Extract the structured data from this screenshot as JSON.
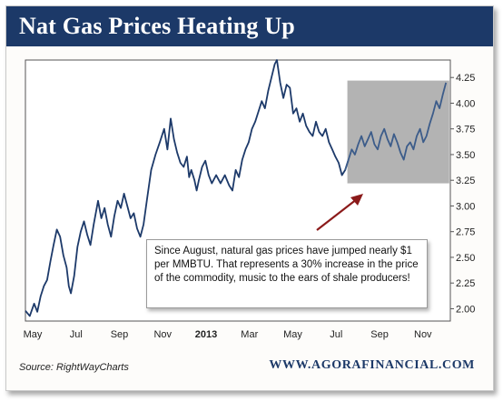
{
  "header": {
    "title": "Nat Gas Prices Heating Up"
  },
  "footer": {
    "source": "Source: RightWayCharts",
    "brand": "WWW.AGORAFINANCIAL.COM"
  },
  "annotation": {
    "text": "Since August, natural gas prices have jumped nearly $1 per MMBTU.  That represents a 30% increase in the price of the commodity, music to the ears of shale producers!"
  },
  "colors": {
    "title_bar": "#1c3968",
    "line": "#1d3a6a",
    "highlight_box": "#b3b3b3",
    "arrow": "#8b1a1a"
  },
  "chart_data": {
    "type": "line",
    "title": "Nat Gas Prices Heating Up",
    "xlabel": "",
    "ylabel": "",
    "x_ticks": [
      "May",
      "Jul",
      "Sep",
      "Nov",
      "2013",
      "Mar",
      "May",
      "Jul",
      "Sep",
      "Nov"
    ],
    "x_tick_bold": [
      false,
      false,
      false,
      false,
      true,
      false,
      false,
      false,
      false,
      false
    ],
    "x_range_months": [
      0,
      19.6
    ],
    "y_ticks": [
      2.0,
      2.25,
      2.5,
      2.75,
      3.0,
      3.25,
      3.5,
      3.75,
      4.0,
      4.25
    ],
    "ylim": [
      1.88,
      4.42
    ],
    "y_axis_side": "right",
    "grid": false,
    "highlight_range": {
      "from": "Aug 2013",
      "to": "Nov 2013",
      "y_from": 3.22,
      "y_to": 4.22
    },
    "series": [
      {
        "values": [
          [
            0.0,
            1.98
          ],
          [
            0.2,
            1.93
          ],
          [
            0.4,
            2.05
          ],
          [
            0.55,
            1.97
          ],
          [
            0.7,
            2.12
          ],
          [
            0.85,
            2.22
          ],
          [
            1.0,
            2.28
          ],
          [
            1.15,
            2.46
          ],
          [
            1.3,
            2.62
          ],
          [
            1.45,
            2.77
          ],
          [
            1.6,
            2.7
          ],
          [
            1.75,
            2.52
          ],
          [
            1.9,
            2.4
          ],
          [
            2.0,
            2.22
          ],
          [
            2.1,
            2.15
          ],
          [
            2.25,
            2.32
          ],
          [
            2.4,
            2.6
          ],
          [
            2.55,
            2.75
          ],
          [
            2.7,
            2.85
          ],
          [
            2.85,
            2.72
          ],
          [
            3.0,
            2.62
          ],
          [
            3.15,
            2.82
          ],
          [
            3.35,
            3.05
          ],
          [
            3.5,
            2.88
          ],
          [
            3.65,
            2.98
          ],
          [
            3.8,
            2.82
          ],
          [
            3.95,
            2.7
          ],
          [
            4.1,
            2.9
          ],
          [
            4.25,
            3.05
          ],
          [
            4.4,
            2.98
          ],
          [
            4.55,
            3.12
          ],
          [
            4.7,
            3.0
          ],
          [
            4.85,
            2.88
          ],
          [
            5.0,
            2.93
          ],
          [
            5.15,
            2.78
          ],
          [
            5.3,
            2.7
          ],
          [
            5.45,
            2.82
          ],
          [
            5.6,
            3.05
          ],
          [
            5.8,
            3.35
          ],
          [
            6.0,
            3.5
          ],
          [
            6.2,
            3.62
          ],
          [
            6.4,
            3.75
          ],
          [
            6.55,
            3.55
          ],
          [
            6.7,
            3.85
          ],
          [
            6.85,
            3.65
          ],
          [
            7.0,
            3.52
          ],
          [
            7.15,
            3.42
          ],
          [
            7.3,
            3.38
          ],
          [
            7.45,
            3.48
          ],
          [
            7.55,
            3.28
          ],
          [
            7.65,
            3.35
          ],
          [
            7.8,
            3.25
          ],
          [
            7.9,
            3.15
          ],
          [
            8.0,
            3.25
          ],
          [
            8.15,
            3.38
          ],
          [
            8.3,
            3.44
          ],
          [
            8.45,
            3.3
          ],
          [
            8.6,
            3.22
          ],
          [
            8.8,
            3.3
          ],
          [
            9.0,
            3.22
          ],
          [
            9.2,
            3.3
          ],
          [
            9.4,
            3.2
          ],
          [
            9.55,
            3.15
          ],
          [
            9.7,
            3.35
          ],
          [
            9.85,
            3.28
          ],
          [
            10.0,
            3.45
          ],
          [
            10.15,
            3.55
          ],
          [
            10.3,
            3.62
          ],
          [
            10.45,
            3.75
          ],
          [
            10.6,
            3.82
          ],
          [
            10.75,
            3.92
          ],
          [
            10.9,
            4.02
          ],
          [
            11.05,
            3.95
          ],
          [
            11.2,
            4.12
          ],
          [
            11.35,
            4.25
          ],
          [
            11.5,
            4.38
          ],
          [
            11.6,
            4.42
          ],
          [
            11.75,
            4.2
          ],
          [
            11.9,
            4.05
          ],
          [
            12.05,
            4.18
          ],
          [
            12.2,
            4.15
          ],
          [
            12.35,
            3.9
          ],
          [
            12.5,
            3.95
          ],
          [
            12.65,
            3.82
          ],
          [
            12.8,
            3.9
          ],
          [
            12.95,
            3.78
          ],
          [
            13.1,
            3.72
          ],
          [
            13.25,
            3.68
          ],
          [
            13.4,
            3.82
          ],
          [
            13.55,
            3.72
          ],
          [
            13.7,
            3.68
          ],
          [
            13.85,
            3.75
          ],
          [
            14.0,
            3.62
          ],
          [
            14.15,
            3.55
          ],
          [
            14.3,
            3.48
          ],
          [
            14.45,
            3.42
          ],
          [
            14.6,
            3.3
          ],
          [
            14.75,
            3.35
          ],
          [
            14.9,
            3.45
          ],
          [
            15.05,
            3.55
          ],
          [
            15.2,
            3.5
          ],
          [
            15.35,
            3.6
          ],
          [
            15.5,
            3.68
          ],
          [
            15.65,
            3.58
          ],
          [
            15.8,
            3.65
          ],
          [
            15.95,
            3.72
          ],
          [
            16.1,
            3.6
          ],
          [
            16.25,
            3.55
          ],
          [
            16.4,
            3.68
          ],
          [
            16.55,
            3.75
          ],
          [
            16.7,
            3.65
          ],
          [
            16.85,
            3.58
          ],
          [
            17.0,
            3.7
          ],
          [
            17.15,
            3.62
          ],
          [
            17.3,
            3.52
          ],
          [
            17.45,
            3.45
          ],
          [
            17.6,
            3.58
          ],
          [
            17.75,
            3.62
          ],
          [
            17.9,
            3.55
          ],
          [
            18.05,
            3.68
          ],
          [
            18.2,
            3.75
          ],
          [
            18.35,
            3.62
          ],
          [
            18.5,
            3.68
          ],
          [
            18.65,
            3.8
          ],
          [
            18.8,
            3.9
          ],
          [
            18.95,
            4.02
          ],
          [
            19.1,
            3.95
          ],
          [
            19.25,
            4.08
          ],
          [
            19.4,
            4.2
          ]
        ]
      }
    ]
  }
}
